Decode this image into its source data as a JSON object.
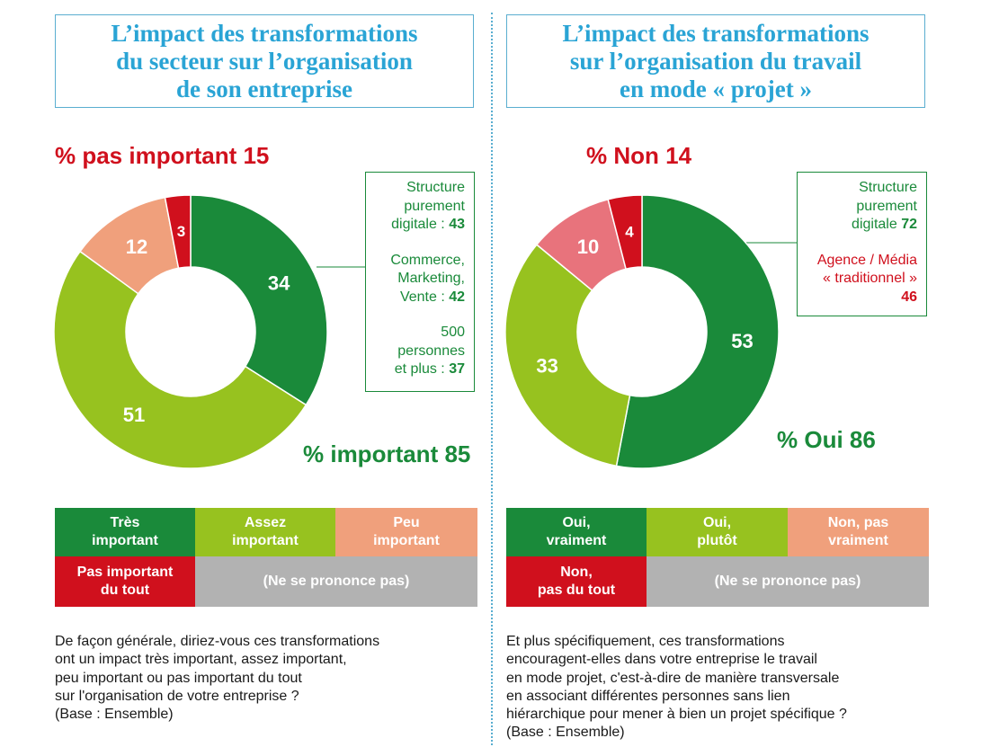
{
  "colors": {
    "title": "#2aa4d5",
    "dark_green": "#1a8a3a",
    "light_green": "#97c21f",
    "salmon": "#f0a07c",
    "pink": "#e8737c",
    "red": "#d0101d",
    "grey": "#b2b2b2"
  },
  "left": {
    "title_lines": [
      "L’impact des transformations",
      "du secteur sur l’organisation",
      "de son entreprise"
    ],
    "negative_label": "% pas important 15",
    "positive_label": "% important 85",
    "callout": [
      {
        "lines": [
          "Structure",
          "purement"
        ],
        "last": "digitale : ",
        "value": "43"
      },
      {
        "lines": [
          "Commerce,",
          "Marketing,"
        ],
        "last": "Vente : ",
        "value": "42"
      },
      {
        "lines": [
          "500",
          "personnes"
        ],
        "last": "et plus : ",
        "value": "37"
      }
    ],
    "legend": {
      "very": [
        "Très",
        "important"
      ],
      "fairly": [
        "Assez",
        "important"
      ],
      "little": [
        "Peu",
        "important"
      ],
      "not": [
        "Pas important",
        "du tout"
      ],
      "dk": "(Ne se prononce pas)"
    },
    "question_lines": [
      "De façon générale, diriez-vous ces transformations",
      "ont un impact très important, assez important,",
      "peu important ou pas important du tout",
      "sur l'organisation de votre entreprise ?",
      "(Base : Ensemble)"
    ]
  },
  "right": {
    "title_lines": [
      "L’impact des transformations",
      "sur l’organisation du travail",
      "en mode « projet »"
    ],
    "negative_label": "% Non 14",
    "positive_label": "% Oui 86",
    "callout": [
      {
        "lines": [
          "Structure",
          "purement"
        ],
        "last": "digitale ",
        "value": "72",
        "color": "green"
      },
      {
        "lines": [
          "Agence / Média",
          "« traditionnel »"
        ],
        "last": "",
        "value": "46",
        "color": "red"
      }
    ],
    "legend": {
      "very": [
        "Oui,",
        "vraiment"
      ],
      "fairly": [
        "Oui,",
        "plutôt"
      ],
      "little": [
        "Non, pas",
        "vraiment"
      ],
      "not": [
        "Non,",
        "pas du tout"
      ],
      "dk": "(Ne se prononce pas)"
    },
    "question_lines": [
      "Et plus spécifiquement, ces transformations",
      "encouragent-elles dans votre entreprise le travail",
      "en mode projet, c'est-à-dire de manière transversale",
      "en associant différentes personnes sans lien",
      "hiérarchique pour mener à bien un projet spécifique ?",
      "(Base : Ensemble)"
    ]
  },
  "chart_data": [
    {
      "type": "pie",
      "title": "L’impact des transformations du secteur sur l’organisation de son entreprise",
      "categories": [
        "Très important",
        "Assez important",
        "Peu important",
        "Pas important du tout",
        "(Ne se prononce pas)"
      ],
      "values": [
        34,
        51,
        12,
        3,
        0
      ],
      "colors": [
        "#1a8a3a",
        "#97c21f",
        "#f0a07c",
        "#d0101d",
        "#b2b2b2"
      ],
      "labels": [
        "34",
        "51",
        "12",
        "3",
        ""
      ],
      "totals": {
        "% important": 85,
        "% pas important": 15
      }
    },
    {
      "type": "pie",
      "title": "L’impact des transformations sur l’organisation du travail en mode « projet »",
      "categories": [
        "Oui, vraiment",
        "Oui, plutôt",
        "Non, pas vraiment",
        "Non, pas du tout",
        "(Ne se prononce pas)"
      ],
      "values": [
        53,
        33,
        10,
        4,
        0
      ],
      "colors": [
        "#1a8a3a",
        "#97c21f",
        "#e8737c",
        "#d0101d",
        "#b2b2b2"
      ],
      "labels": [
        "53",
        "33",
        "10",
        "4",
        ""
      ],
      "totals": {
        "% Oui": 86,
        "% Non": 14
      }
    }
  ]
}
